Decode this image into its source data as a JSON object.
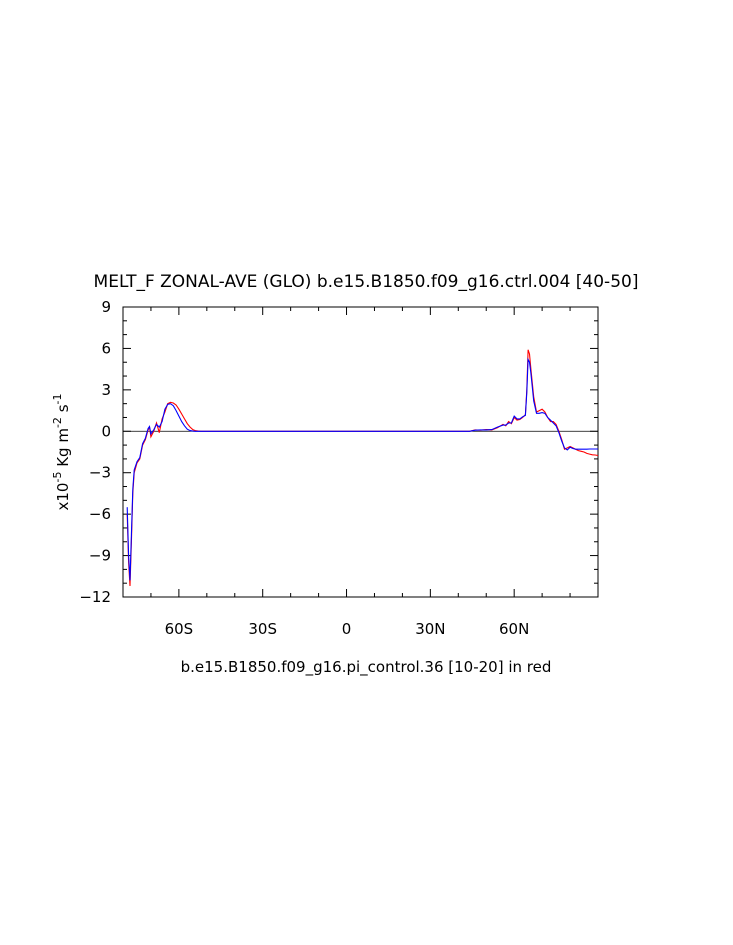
{
  "chart_data": {
    "type": "line",
    "title": "MELT_F ZONAL-AVE (GLO) b.e15.B1850.f09_g16.ctrl.004 [40-50]",
    "xlabel": "b.e15.B1850.f09_g16.pi_control.36 [10-20] in red",
    "ylabel_prefix": "x10",
    "ylabel_exp1": "-5",
    "ylabel_mid": " Kg m",
    "ylabel_exp2": "-2",
    "ylabel_mid2": " s",
    "ylabel_exp3": "-1",
    "xlim": [
      -80,
      90
    ],
    "ylim": [
      -12,
      9
    ],
    "x_ticks": [
      -60,
      -30,
      0,
      30,
      60
    ],
    "x_tick_labels": [
      "60S",
      "30S",
      "0",
      "30N",
      "60N"
    ],
    "y_ticks": [
      9,
      6,
      3,
      0,
      -3,
      -6,
      -9,
      -12
    ],
    "y_tick_labels": [
      "9",
      "6",
      "3",
      "0",
      "−3",
      "−6",
      "−9",
      "−12"
    ],
    "zero_line": true,
    "series": [
      {
        "color": "#ff0000",
        "x": [
          -78.5,
          -78,
          -77.5,
          -77,
          -76.5,
          -76,
          -75,
          -74,
          -73,
          -72,
          -71,
          -70.5,
          -70,
          -69,
          -68,
          -67,
          -66,
          -65,
          -64,
          -63,
          -62,
          -61,
          -60,
          -59,
          -58,
          -57,
          -56,
          -55,
          -54,
          -53,
          -52,
          -50,
          -40,
          -20,
          0,
          20,
          40,
          44,
          46,
          48,
          50,
          52,
          54,
          56,
          57,
          58,
          59,
          60,
          61,
          62,
          63,
          64,
          64.5,
          65,
          65.5,
          66,
          67,
          68,
          69,
          70,
          71,
          72,
          73,
          74,
          75,
          76,
          77,
          78,
          79,
          80,
          81,
          82,
          83,
          84,
          85,
          86,
          87,
          88,
          89,
          90
        ],
        "y": [
          -6.0,
          -9.5,
          -11.2,
          -8.0,
          -4.5,
          -3.0,
          -2.3,
          -2.0,
          -1.0,
          -0.6,
          0.1,
          0.3,
          -0.4,
          0.0,
          0.6,
          -0.1,
          0.9,
          1.4,
          2.0,
          2.1,
          2.05,
          1.9,
          1.6,
          1.25,
          0.9,
          0.55,
          0.3,
          0.12,
          0.04,
          0.01,
          0.0,
          0.0,
          0.0,
          0.0,
          0.0,
          0.0,
          0.0,
          0.0,
          0.1,
          0.08,
          0.12,
          0.1,
          0.25,
          0.5,
          0.4,
          0.7,
          0.55,
          1.0,
          0.8,
          0.85,
          1.0,
          1.2,
          3.0,
          5.9,
          5.6,
          4.5,
          2.5,
          1.4,
          1.5,
          1.6,
          1.4,
          1.0,
          0.7,
          0.7,
          0.5,
          0.0,
          -0.6,
          -1.3,
          -1.2,
          -1.1,
          -1.2,
          -1.3,
          -1.4,
          -1.45,
          -1.5,
          -1.6,
          -1.65,
          -1.7,
          -1.72,
          -1.75
        ]
      },
      {
        "color": "#0000ff",
        "x": [
          -78.5,
          -78,
          -77.5,
          -77,
          -76.5,
          -76,
          -75,
          -74,
          -73,
          -72,
          -71,
          -70.5,
          -70,
          -69,
          -68,
          -67,
          -66,
          -65,
          -64,
          -63,
          -62,
          -61,
          -60,
          -59,
          -58,
          -57,
          -56,
          -55,
          -54,
          -53,
          -52,
          -50,
          -40,
          -20,
          0,
          20,
          40,
          44,
          46,
          48,
          50,
          52,
          54,
          56,
          57,
          58,
          59,
          60,
          61,
          62,
          63,
          64,
          64.5,
          65,
          65.5,
          66,
          67,
          68,
          69,
          70,
          71,
          72,
          73,
          74,
          75,
          76,
          77,
          78,
          79,
          80,
          81,
          82,
          83,
          84,
          85,
          86,
          87,
          88,
          89,
          90
        ],
        "y": [
          -5.5,
          -9.0,
          -10.8,
          -7.5,
          -4.2,
          -2.8,
          -2.2,
          -1.9,
          -0.9,
          -0.5,
          0.2,
          0.35,
          -0.2,
          0.1,
          0.5,
          0.3,
          0.7,
          1.6,
          1.95,
          2.0,
          1.85,
          1.5,
          1.1,
          0.7,
          0.4,
          0.15,
          0.05,
          0.01,
          0.0,
          0.0,
          0.0,
          0.0,
          0.0,
          0.0,
          0.0,
          0.0,
          0.0,
          0.0,
          0.08,
          0.1,
          0.1,
          0.12,
          0.3,
          0.45,
          0.45,
          0.6,
          0.6,
          1.1,
          0.9,
          0.9,
          1.05,
          1.15,
          2.8,
          5.2,
          5.0,
          4.2,
          2.2,
          1.3,
          1.3,
          1.35,
          1.3,
          1.0,
          0.8,
          0.6,
          0.4,
          -0.1,
          -0.7,
          -1.2,
          -1.35,
          -1.15,
          -1.25,
          -1.3,
          -1.3,
          -1.3,
          -1.3,
          -1.3,
          -1.28,
          -1.28,
          -1.28,
          -1.28
        ]
      }
    ]
  }
}
